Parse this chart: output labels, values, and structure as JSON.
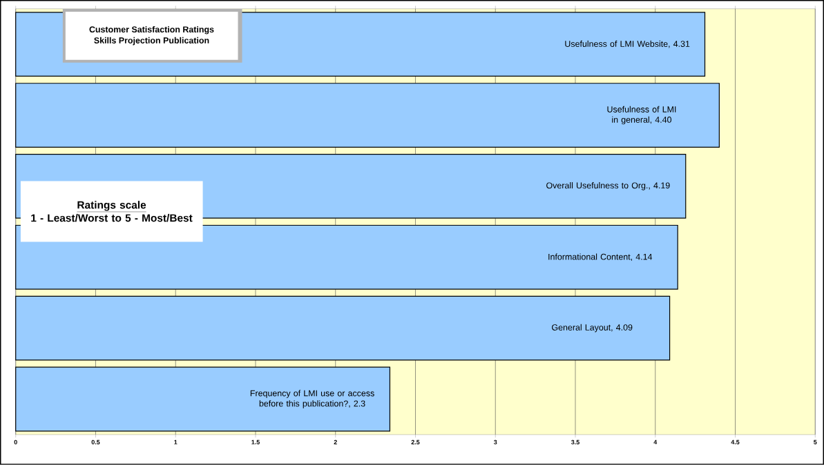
{
  "chart_data": {
    "type": "bar",
    "orientation": "horizontal",
    "title": "Customer Satisfaction Ratings\nSkills Projection Publication",
    "annotations": [
      "Ratings  scale",
      "1 - Least/Worst to 5 - Most/Best"
    ],
    "categories": [
      null,
      null,
      null,
      null,
      null,
      null
    ],
    "values": [
      4.31,
      4.4,
      4.19,
      4.14,
      4.09,
      2.34
    ],
    "value_labels": [
      "Usefulness of LMI Website, 4.31",
      "Usefulness of LMI in general, 4.40",
      "Overall Usefulness to Org., 4.19",
      "Informational Content, 4.14",
      "General Layout, 4.09",
      "Frequency of LMI use or access before this publication?, 2.3"
    ],
    "color": "#99ccff",
    "xlim": [
      0,
      5
    ],
    "xticks": [
      0,
      0.5,
      1,
      1.5,
      2,
      2.5,
      3,
      3.5,
      4,
      4.5,
      5
    ],
    "bands": [
      {
        "axis": "x",
        "from": 0,
        "to": 5,
        "color": "#ffffcc"
      }
    ],
    "grid": "x",
    "tick_labels": "x"
  }
}
